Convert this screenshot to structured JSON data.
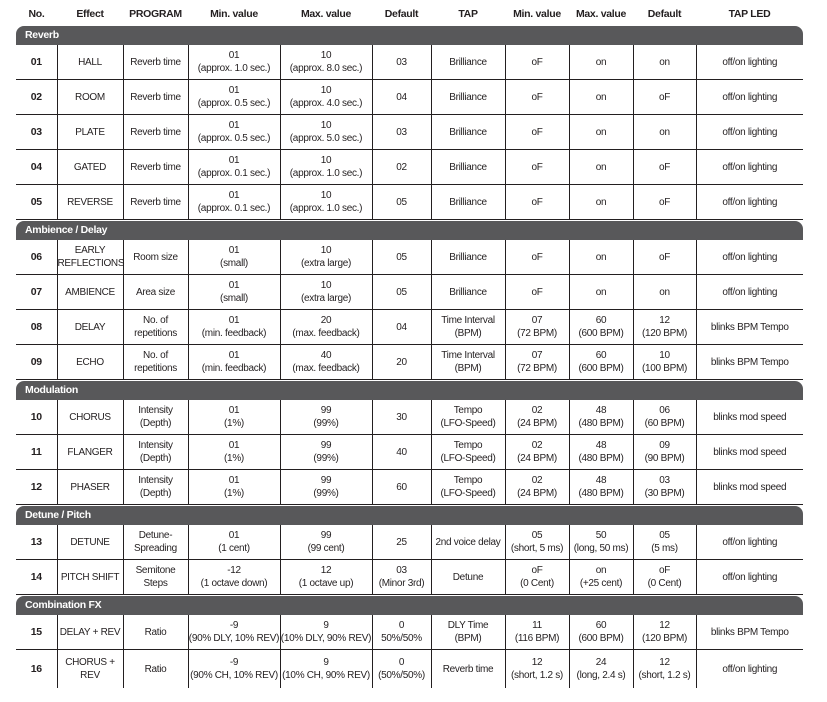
{
  "headers": [
    "No.",
    "Effect",
    "PROGRAM",
    "Min. value",
    "Max. value",
    "Default",
    "TAP",
    "Min. value",
    "Max. value",
    "Default",
    "TAP LED"
  ],
  "sections": [
    {
      "title": "Reverb",
      "rows": [
        [
          "01",
          "HALL",
          "Reverb time",
          "01\n(approx. 1.0 sec.)",
          "10\n(approx. 8.0 sec.)",
          "03",
          "Brilliance",
          "oF",
          "on",
          "on",
          "off/on lighting"
        ],
        [
          "02",
          "ROOM",
          "Reverb time",
          "01\n(approx. 0.5 sec.)",
          "10\n(approx. 4.0 sec.)",
          "04",
          "Brilliance",
          "oF",
          "on",
          "oF",
          "off/on lighting"
        ],
        [
          "03",
          "PLATE",
          "Reverb time",
          "01\n(approx. 0.5 sec.)",
          "10\n(approx. 5.0 sec.)",
          "03",
          "Brilliance",
          "oF",
          "on",
          "on",
          "off/on lighting"
        ],
        [
          "04",
          "GATED",
          "Reverb time",
          "01\n(approx. 0.1 sec.)",
          "10\n(approx. 1.0 sec.)",
          "02",
          "Brilliance",
          "oF",
          "on",
          "oF",
          "off/on lighting"
        ],
        [
          "05",
          "REVERSE",
          "Reverb time",
          "01\n(approx. 0.1 sec.)",
          "10\n(approx. 1.0 sec.)",
          "05",
          "Brilliance",
          "oF",
          "on",
          "oF",
          "off/on lighting"
        ]
      ]
    },
    {
      "title": "Ambience / Delay",
      "rows": [
        [
          "06",
          "EARLY\nREFLECTIONS",
          "Room size",
          "01\n(small)",
          "10\n(extra large)",
          "05",
          "Brilliance",
          "oF",
          "on",
          "oF",
          "off/on lighting"
        ],
        [
          "07",
          "AMBIENCE",
          "Area size",
          "01\n(small)",
          "10\n(extra large)",
          "05",
          "Brilliance",
          "oF",
          "on",
          "on",
          "off/on lighting"
        ],
        [
          "08",
          "DELAY",
          "No. of\nrepetitions",
          "01\n(min. feedback)",
          "20\n(max. feedback)",
          "04",
          "Time Interval\n(BPM)",
          "07\n(72 BPM)",
          "60\n(600 BPM)",
          "12\n(120 BPM)",
          "blinks BPM Tempo"
        ],
        [
          "09",
          "ECHO",
          "No. of\nrepetitions",
          "01\n(min. feedback)",
          "40\n(max. feedback)",
          "20",
          "Time Interval\n(BPM)",
          "07\n(72 BPM)",
          "60\n(600 BPM)",
          "10\n(100 BPM)",
          "blinks BPM Tempo"
        ]
      ]
    },
    {
      "title": "Modulation",
      "rows": [
        [
          "10",
          "CHORUS",
          "Intensity\n(Depth)",
          "01\n(1%)",
          "99\n(99%)",
          "30",
          "Tempo\n(LFO-Speed)",
          "02\n(24 BPM)",
          "48\n(480 BPM)",
          "06\n(60 BPM)",
          "blinks mod speed"
        ],
        [
          "11",
          "FLANGER",
          "Intensity\n(Depth)",
          "01\n(1%)",
          "99\n(99%)",
          "40",
          "Tempo\n(LFO-Speed)",
          "02\n(24 BPM)",
          "48\n(480 BPM)",
          "09\n(90 BPM)",
          "blinks mod speed"
        ],
        [
          "12",
          "PHASER",
          "Intensity\n(Depth)",
          "01\n(1%)",
          "99\n(99%)",
          "60",
          "Tempo\n(LFO-Speed)",
          "02\n(24 BPM)",
          "48\n(480 BPM)",
          "03\n(30 BPM)",
          "blinks mod speed"
        ]
      ]
    },
    {
      "title": "Detune / Pitch",
      "rows": [
        [
          "13",
          "DETUNE",
          "Detune-\nSpreading",
          "01\n(1 cent)",
          "99\n(99 cent)",
          "25",
          "2nd voice delay",
          "05\n(short, 5 ms)",
          "50\n(long, 50 ms)",
          "05\n(5 ms)",
          "off/on lighting"
        ],
        [
          "14",
          "PITCH SHIFT",
          "Semitone\nSteps",
          "-12\n(1 octave down)",
          "12\n(1 octave up)",
          "03\n(Minor 3rd)",
          "Detune",
          "oF\n(0 Cent)",
          "on\n(+25 cent)",
          "oF\n(0 Cent)",
          "off/on lighting"
        ]
      ]
    },
    {
      "title": "Combination FX",
      "rows": [
        [
          "15",
          "DELAY + REV",
          "Ratio",
          "-9\n(90% DLY, 10% REV)",
          "9\n(10% DLY, 90% REV)",
          "0\n50%/50%",
          "DLY Time\n(BPM)",
          "11\n(116 BPM)",
          "60\n(600 BPM)",
          "12\n(120 BPM)",
          "blinks BPM Tempo"
        ],
        [
          "16",
          "CHORUS +\nREV",
          "Ratio",
          "-9\n(90% CH, 10% REV)",
          "9\n(10% CH, 90% REV)",
          "0\n(50%/50%)",
          "Reverb time",
          "12\n(short, 1.2 s)",
          "24\n(long, 2.4 s)",
          "12\n(short, 1.2 s)",
          "off/on lighting"
        ]
      ]
    }
  ],
  "colors": {
    "band": "#58585a",
    "text": "#231f20"
  }
}
